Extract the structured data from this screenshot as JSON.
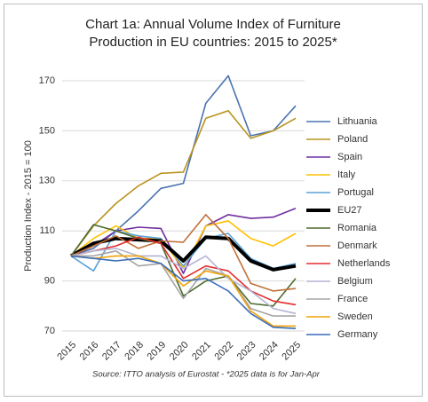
{
  "chart_data": {
    "type": "line",
    "title": "Chart 1a: Annual Volume Index of Furniture Production in EU countries: 2015 to 2025*",
    "y_label": "Production Index - 2015 = 100",
    "source": "Source: ITTO analysis of Eurostat - *2025 data is for Jan-Apr",
    "categories": [
      "2015",
      "2016",
      "2017",
      "2018",
      "2019",
      "2020",
      "2021",
      "2022",
      "2023",
      "2024",
      "2025"
    ],
    "ylim": [
      70,
      170
    ],
    "yticks": [
      70,
      90,
      110,
      130,
      150,
      170
    ],
    "grid": true,
    "legend": "right",
    "series": [
      {
        "name": "Lithuania",
        "color": "#4a72b0",
        "values": [
          100,
          103,
          110,
          118,
          127,
          129,
          161,
          172,
          148,
          150,
          160
        ]
      },
      {
        "name": "Poland",
        "color": "#b8941e",
        "values": [
          100,
          112,
          121,
          128,
          133,
          133.5,
          155,
          158,
          147,
          150,
          155
        ]
      },
      {
        "name": "Spain",
        "color": "#7030a0",
        "values": [
          100,
          104,
          110,
          111.5,
          111,
          93,
          112,
          116.5,
          115,
          115.5,
          119
        ]
      },
      {
        "name": "Italy",
        "color": "#ffc000",
        "values": [
          100,
          107,
          112,
          107,
          107,
          95,
          112,
          114,
          107,
          104,
          109
        ]
      },
      {
        "name": "Portugal",
        "color": "#5ba3d9",
        "values": [
          100,
          94,
          110,
          108,
          107,
          96,
          107,
          109,
          99,
          95,
          97
        ]
      },
      {
        "name": "EU27",
        "color": "#000000",
        "values": [
          100,
          105,
          107,
          106.5,
          106,
          98,
          107.5,
          107,
          98,
          94.5,
          96
        ]
      },
      {
        "name": "Romania",
        "color": "#4e6b2e",
        "values": [
          100,
          112.5,
          110,
          107,
          105,
          84,
          90,
          92,
          81,
          80,
          91
        ]
      },
      {
        "name": "Denmark",
        "color": "#c0703a",
        "values": [
          100,
          104,
          108,
          103,
          106,
          105.5,
          116.5,
          107,
          89,
          86,
          87
        ]
      },
      {
        "name": "Netherlands",
        "color": "#e32c2c",
        "values": [
          100,
          102,
          104,
          107.5,
          105,
          91,
          96,
          94,
          86,
          82,
          80.5
        ]
      },
      {
        "name": "Belgium",
        "color": "#b4b4d4",
        "values": [
          100,
          102,
          103,
          100,
          100,
          95,
          100,
          91,
          86,
          79,
          77
        ]
      },
      {
        "name": "France",
        "color": "#a5a5a5",
        "values": [
          100,
          100,
          102,
          96,
          97,
          83,
          95,
          92,
          79,
          76,
          76
        ]
      },
      {
        "name": "Sweden",
        "color": "#f0a30a",
        "values": [
          100,
          99,
          100,
          100,
          97,
          88,
          94,
          92,
          78,
          72,
          72
        ]
      },
      {
        "name": "Germany",
        "color": "#3a6dbb",
        "values": [
          100,
          99,
          98,
          99,
          97,
          90,
          91,
          86,
          77,
          71.5,
          71
        ]
      }
    ]
  }
}
